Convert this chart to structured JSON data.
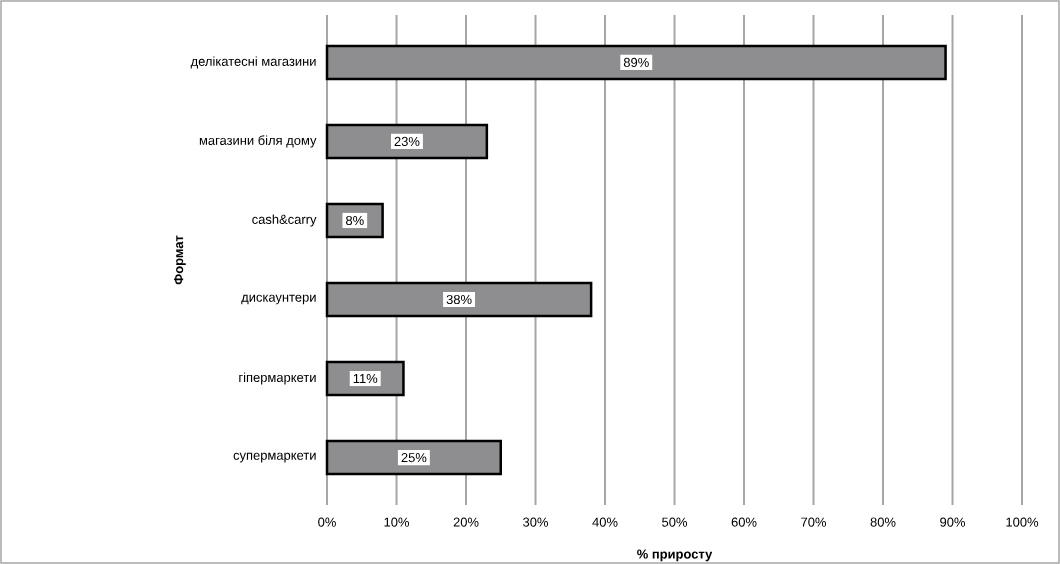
{
  "chart_data": {
    "type": "bar",
    "orientation": "horizontal",
    "xlabel": "% приросту",
    "ylabel": "Формат",
    "categories": [
      "делікатесні магазини",
      "магазини біля дому",
      "cash&carry",
      "дискаунтери",
      "гіпермаркети",
      "супермаркети"
    ],
    "values": [
      89,
      23,
      8,
      38,
      11,
      25
    ],
    "value_labels": [
      "89%",
      "23%",
      "8%",
      "38%",
      "11%",
      "25%"
    ],
    "color": "#8e8e90",
    "xlim": [
      0,
      100
    ],
    "xticks": [
      {
        "value": 0,
        "label": "0%"
      },
      {
        "value": 10,
        "label": "10%"
      },
      {
        "value": 20,
        "label": "20%"
      },
      {
        "value": 30,
        "label": "30%"
      },
      {
        "value": 40,
        "label": "40%"
      },
      {
        "value": 50,
        "label": "50%"
      },
      {
        "value": 60,
        "label": "60%"
      },
      {
        "value": 70,
        "label": "70%"
      },
      {
        "value": 80,
        "label": "80%"
      },
      {
        "value": 90,
        "label": "90%"
      },
      {
        "value": 100,
        "label": "100%"
      }
    ],
    "grid": "x"
  }
}
